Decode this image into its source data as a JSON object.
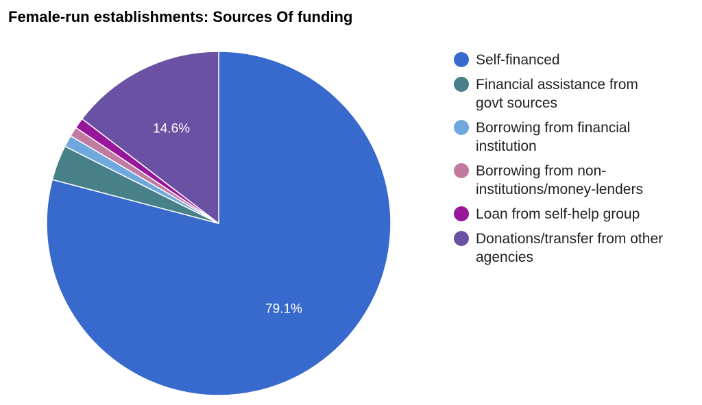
{
  "chart_data": {
    "type": "pie",
    "title": "Female-run establishments: Sources Of funding",
    "categories": [
      "Self-financed",
      "Financial assistance from govt sources",
      "Borrowing from financial institution",
      "Borrowing from non-institutions/money-lenders",
      "Loan from self-help group",
      "Donations/transfer from other agencies"
    ],
    "values": [
      79.1,
      3.3,
      1.1,
      0.9,
      1.0,
      14.6
    ],
    "colors": [
      "#3869cc",
      "#48808a",
      "#6fa8dc",
      "#c27ba0",
      "#97169a",
      "#6a51a3"
    ],
    "data_labels": [
      "79.1%",
      "",
      "",
      "",
      "",
      "14.6%"
    ],
    "legend_position": "right",
    "start_angle": "12 o'clock, clockwise"
  },
  "legend": {
    "items": [
      {
        "lines": [
          "Self-financed"
        ]
      },
      {
        "lines": [
          "Financial assistance from",
          "govt sources"
        ]
      },
      {
        "lines": [
          "Borrowing from financial",
          "institution"
        ]
      },
      {
        "lines": [
          "Borrowing from non-",
          "institutions/money-lenders"
        ]
      },
      {
        "lines": [
          "Loan from self-help group"
        ]
      },
      {
        "lines": [
          "Donations/transfer from other",
          "agencies"
        ]
      }
    ]
  }
}
